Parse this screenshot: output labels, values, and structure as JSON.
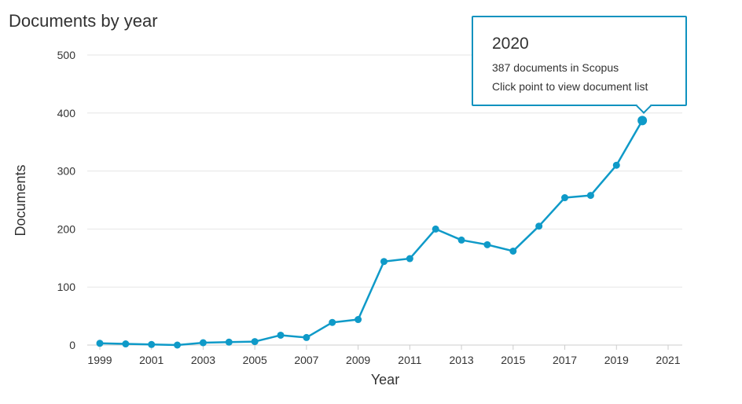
{
  "title": "Documents by year",
  "tooltip": {
    "year": "2020",
    "count_text": "387 documents in Scopus",
    "hint_text": "Click point to view document list"
  },
  "colors": {
    "series": "#0f9ac8",
    "grid": "#e6e6e6",
    "axis": "#cccccc",
    "tooltip_border": "#0f92bf"
  },
  "chart_data": {
    "type": "line",
    "xlabel": "Year",
    "ylabel": "Documents",
    "xlim": [
      1999,
      2021
    ],
    "ylim": [
      0,
      500
    ],
    "yticks": [
      0,
      100,
      200,
      300,
      400,
      500
    ],
    "xticks": [
      "1999",
      "2001",
      "2003",
      "2005",
      "2007",
      "2009",
      "2011",
      "2013",
      "2015",
      "2017",
      "2019",
      "2021"
    ],
    "grid": true,
    "series": [
      {
        "x": [
          1999,
          2000,
          2001,
          2002,
          2003,
          2004,
          2005,
          2006,
          2007,
          2008,
          2009,
          2010,
          2011,
          2012,
          2013,
          2014,
          2015,
          2016,
          2017,
          2018,
          2019,
          2020
        ],
        "values": [
          3,
          2,
          1,
          0,
          4,
          5,
          6,
          17,
          13,
          39,
          44,
          144,
          149,
          200,
          181,
          173,
          162,
          205,
          254,
          258,
          310,
          387
        ]
      }
    ],
    "highlighted_point": {
      "x": 2020,
      "y": 387
    }
  }
}
